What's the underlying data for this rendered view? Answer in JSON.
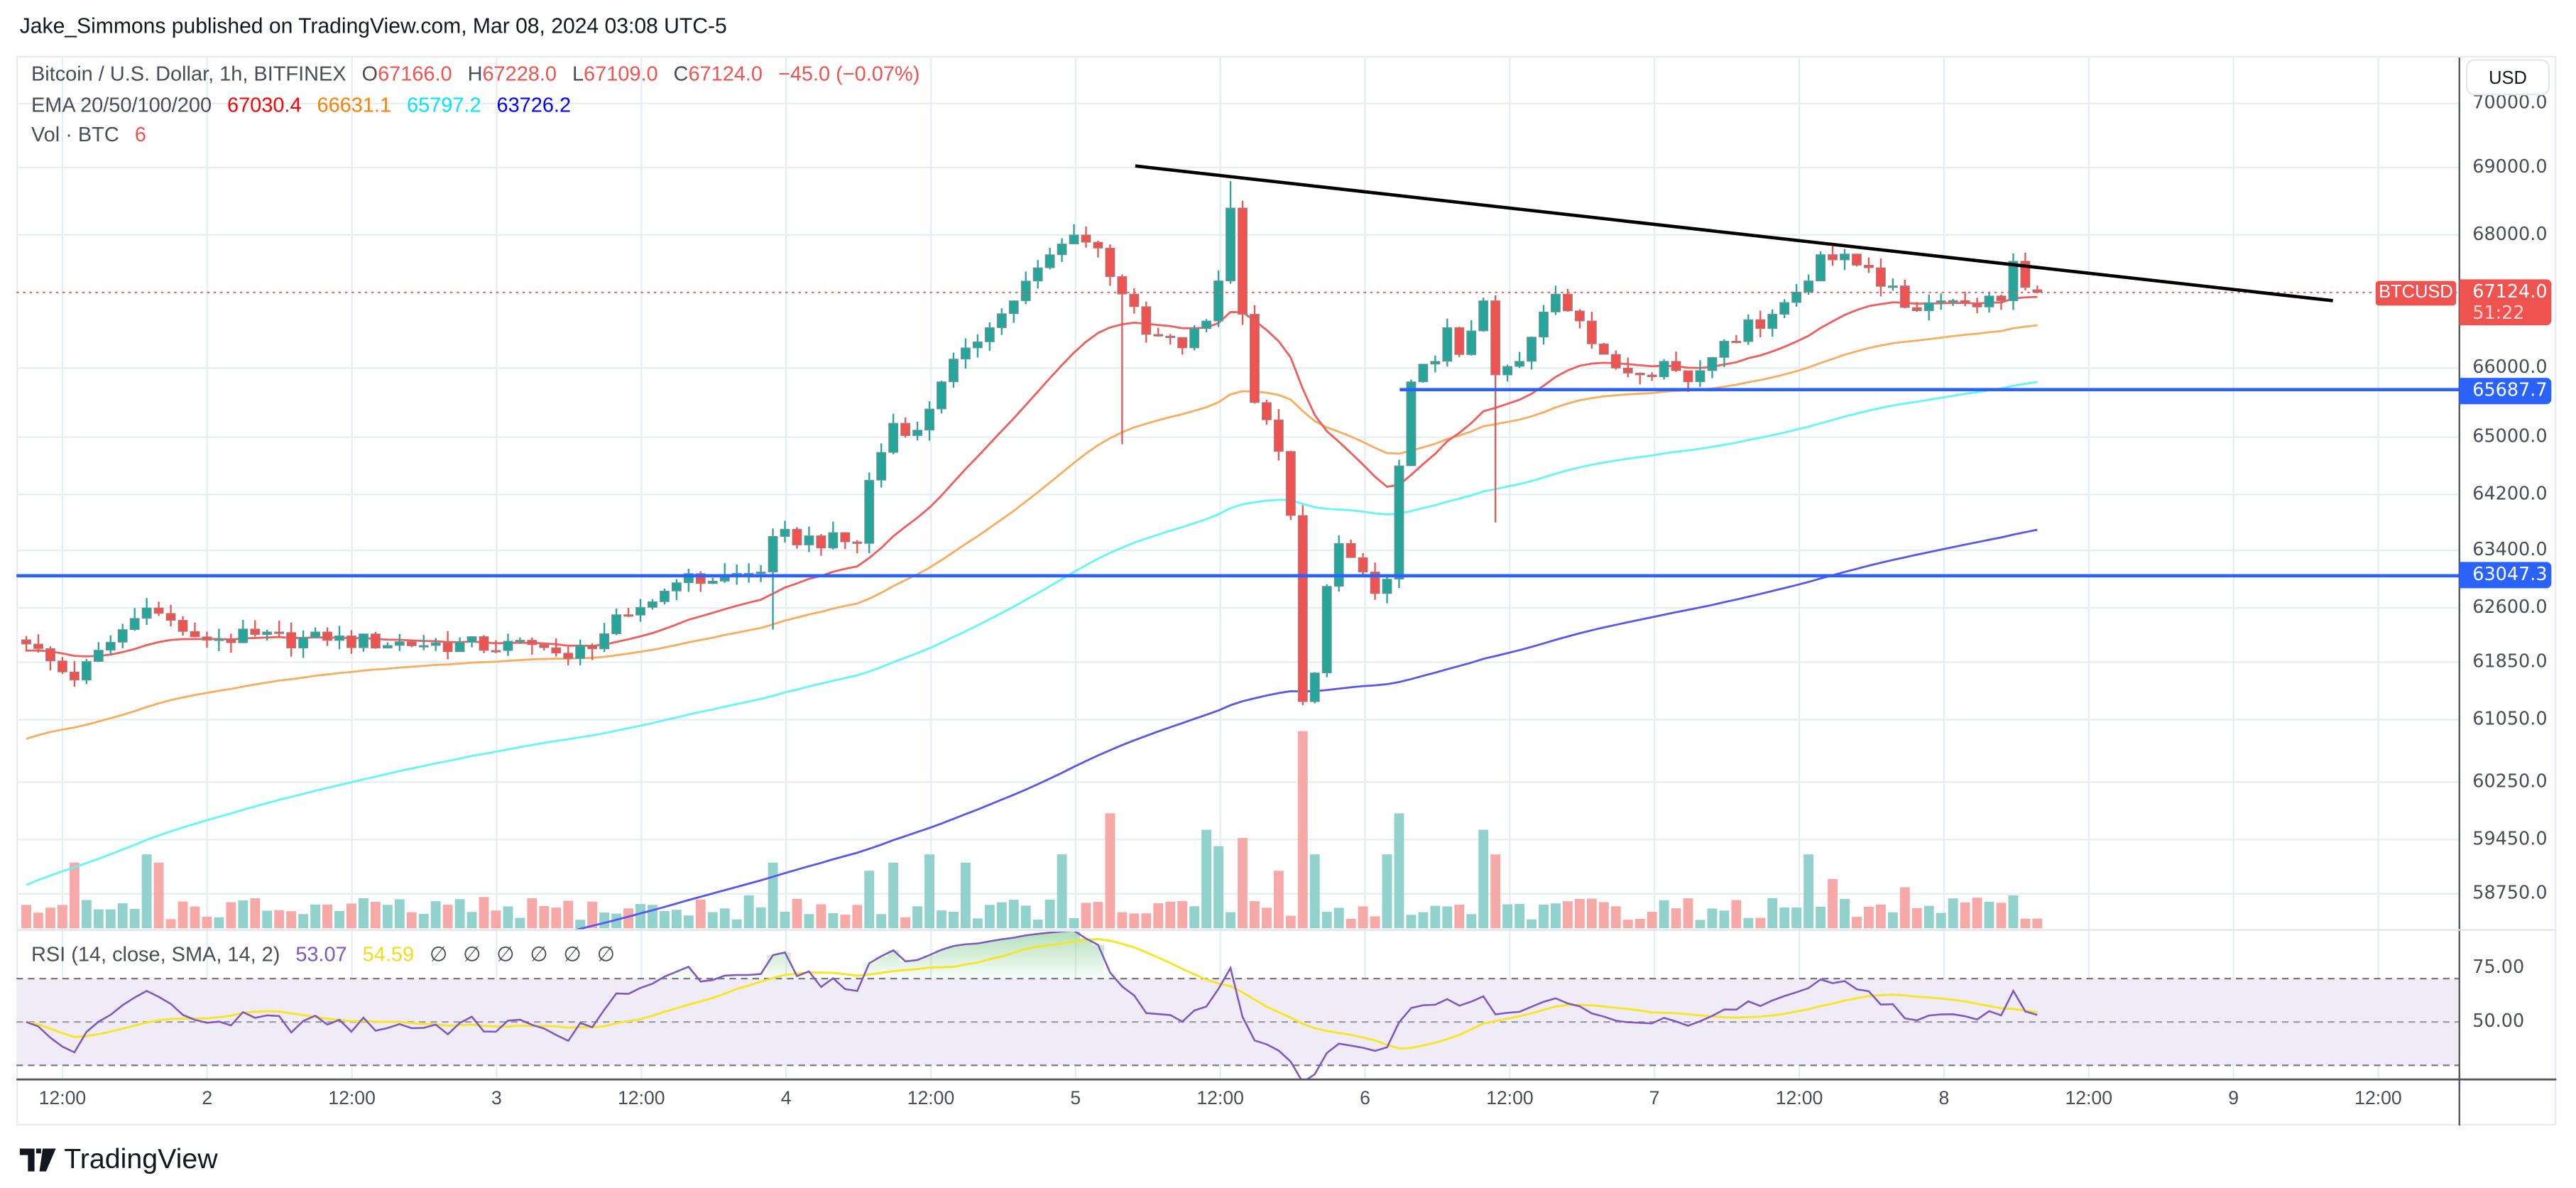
{
  "header": {
    "published": "Jake_Simmons published on TradingView.com, Mar 08, 2024 03:08 UTC-5"
  },
  "legend": {
    "symbol": "Bitcoin / U.S. Dollar, 1h, BITFINEX",
    "o_label": "O",
    "o": "67166.0",
    "h_label": "H",
    "h": "67228.0",
    "l_label": "L",
    "l": "67109.0",
    "c_label": "C",
    "c": "67124.0",
    "change": "−45.0 (−0.07%)",
    "ema_label": "EMA 20/50/100/200",
    "ema20": "67030.4",
    "ema50": "66631.1",
    "ema100": "65797.2",
    "ema200": "63726.2",
    "vol_label": "Vol · BTC",
    "vol": "6",
    "rsi_label": "RSI (14, close, SMA, 14, 2)",
    "rsi": "53.07",
    "rsi_sma": "54.59",
    "rsi_empty": [
      "∅",
      "∅",
      "∅",
      "∅",
      "∅",
      "∅"
    ]
  },
  "price_axis": {
    "currency": "USD",
    "last_symbol": "BTCUSD",
    "last_price": "67124.0",
    "countdown": "51:22",
    "levels": [
      "65687.7",
      "63047.3"
    ]
  },
  "logo": "TradingView",
  "colors": {
    "up": "#26a69a",
    "down": "#ef5350",
    "ema20": "#f45b5b",
    "ema50": "#fbac5b",
    "ema100": "#5ff7f7",
    "ema200": "#5757f0",
    "level": "#2962ff",
    "rsi": "#7e57c2",
    "rsi_sma": "#ffeb3b"
  },
  "chart_data": {
    "type": "candlestick",
    "title": "Bitcoin / U.S. Dollar, 1h, BITFINEX",
    "x_tick_labels": [
      "12:00",
      "2",
      "12:00",
      "3",
      "12:00",
      "4",
      "12:00",
      "5",
      "12:00",
      "6",
      "12:00",
      "7",
      "12:00",
      "8",
      "12:00",
      "9",
      "12:00"
    ],
    "y_ticks": [
      70000,
      69000,
      68000,
      66000,
      65000,
      64200,
      63400,
      62600,
      61850,
      61050,
      60250,
      59450,
      58750
    ],
    "y_tick_labels": [
      "70000.0",
      "69000.0",
      "68000.0",
      "66000.0",
      "65000.0",
      "64200.0",
      "63400.0",
      "62600.0",
      "61850.0",
      "61050.0",
      "60250.0",
      "59450.0",
      "58750.0"
    ],
    "candle_count": 168,
    "close_keypoints": [
      [
        0,
        62100
      ],
      [
        4,
        61600
      ],
      [
        8,
        62300
      ],
      [
        10,
        62600
      ],
      [
        14,
        62200
      ],
      [
        25,
        62150
      ],
      [
        43,
        62050
      ],
      [
        45,
        61900
      ],
      [
        50,
        62500
      ],
      [
        54,
        62950
      ],
      [
        61,
        63100
      ],
      [
        62,
        63600
      ],
      [
        69,
        63500
      ],
      [
        70,
        64400
      ],
      [
        72,
        65200
      ],
      [
        74,
        65100
      ],
      [
        76,
        65800
      ],
      [
        78,
        66300
      ],
      [
        80,
        66600
      ],
      [
        82,
        67000
      ],
      [
        84,
        67500
      ],
      [
        87,
        68000
      ],
      [
        89,
        67800
      ],
      [
        91,
        67100
      ],
      [
        93,
        66500
      ],
      [
        96,
        66300
      ],
      [
        98,
        66700
      ],
      [
        99,
        67300
      ],
      [
        100,
        68400
      ],
      [
        101,
        66800
      ],
      [
        102,
        65500
      ],
      [
        104,
        64800
      ],
      [
        105,
        63900
      ],
      [
        106,
        61300
      ],
      [
        107,
        61700
      ],
      [
        108,
        62900
      ],
      [
        109,
        63500
      ],
      [
        110,
        63300
      ],
      [
        111,
        63100
      ],
      [
        112,
        62800
      ],
      [
        113,
        63000
      ],
      [
        114,
        64600
      ],
      [
        115,
        65800
      ],
      [
        117,
        66100
      ],
      [
        118,
        66600
      ],
      [
        119,
        66200
      ],
      [
        121,
        67000
      ],
      [
        122,
        65900
      ],
      [
        124,
        66100
      ],
      [
        127,
        67100
      ],
      [
        129,
        66700
      ],
      [
        132,
        66000
      ],
      [
        134,
        65900
      ],
      [
        136,
        66100
      ],
      [
        138,
        65800
      ],
      [
        141,
        66400
      ],
      [
        145,
        66800
      ],
      [
        148,
        67300
      ],
      [
        149,
        67700
      ],
      [
        153,
        67500
      ],
      [
        156,
        66900
      ],
      [
        159,
        67000
      ],
      [
        164,
        67000
      ],
      [
        165,
        67600
      ],
      [
        166,
        67200
      ],
      [
        167,
        67124
      ]
    ],
    "last_candle": {
      "open": 67166.0,
      "high": 67228.0,
      "low": 67109.0,
      "close": 67124.0
    },
    "long_wicks": [
      [
        91,
        "low",
        64900
      ],
      [
        122,
        "low",
        63800
      ],
      [
        54,
        "high",
        63000
      ],
      [
        62,
        "low",
        62300
      ],
      [
        100,
        "high",
        68800
      ]
    ],
    "volume_spikes": [
      [
        4,
        40
      ],
      [
        10,
        45
      ],
      [
        11,
        40
      ],
      [
        60,
        20
      ],
      [
        62,
        40
      ],
      [
        70,
        35
      ],
      [
        72,
        40
      ],
      [
        75,
        45
      ],
      [
        78,
        40
      ],
      [
        86,
        45
      ],
      [
        90,
        70
      ],
      [
        98,
        60
      ],
      [
        99,
        50
      ],
      [
        101,
        55
      ],
      [
        104,
        35
      ],
      [
        106,
        120
      ],
      [
        107,
        45
      ],
      [
        113,
        45
      ],
      [
        114,
        70
      ],
      [
        121,
        60
      ],
      [
        122,
        45
      ],
      [
        148,
        45
      ],
      [
        150,
        30
      ],
      [
        156,
        25
      ],
      [
        165,
        20
      ]
    ],
    "ema_seeds": {
      "ema20": 62000,
      "ema50": 60750,
      "ema100": 58800,
      "ema200": 56000
    },
    "horizontal_levels": [
      65687.7,
      63047.3
    ],
    "trendline": {
      "from": [
        89,
        69050
      ],
      "to": [
        190,
        67050
      ]
    },
    "rsi_levels": [
      70,
      50,
      30
    ],
    "rsi_tick_labels": [
      "75.00",
      "50.00"
    ]
  }
}
